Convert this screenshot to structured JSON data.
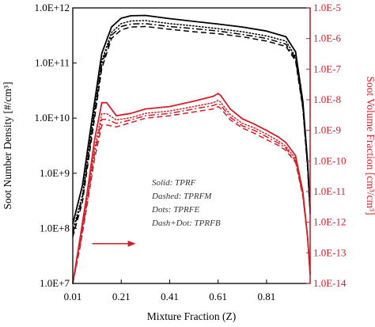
{
  "chart_data": {
    "type": "line",
    "xlabel": "Mixture Fraction (Z)",
    "ylabel_left": "Soot Number Density [#/cm³]",
    "ylabel_right": "Soot Volume Fraction [cm³/cm³]",
    "x_ticks": [
      0.01,
      0.21,
      0.41,
      0.61,
      0.81
    ],
    "x_tick_labels": [
      "0.01",
      "0.21",
      "0.41",
      "0.61",
      "0.81"
    ],
    "xlim": [
      0.01,
      0.99
    ],
    "left_axis": {
      "scale": "log",
      "ylim": [
        10000000.0,
        1000000000000.0
      ],
      "ticks": [
        10000000.0,
        100000000.0,
        1000000000.0,
        10000000000.0,
        100000000000.0,
        1000000000000.0
      ],
      "tick_labels": [
        "1.0E+7",
        "1.0E+8",
        "1.0E+9",
        "1.0E+10",
        "1.0E+11",
        "1.0E+12"
      ],
      "color": "#000000"
    },
    "right_axis": {
      "scale": "log",
      "ylim": [
        1e-14,
        1e-05
      ],
      "ticks": [
        1e-14,
        1e-13,
        1e-12,
        1e-11,
        1e-10,
        1e-09,
        1e-08,
        1e-07,
        1e-06,
        1e-05
      ],
      "tick_labels": [
        "1.0E-14",
        "1.0E-13",
        "1.0E-12",
        "1.0E-11",
        "1.0E-10",
        "1.0E-9",
        "1.0E-8",
        "1.0E-7",
        "1.0E-6",
        "1.0E-5"
      ],
      "color": "#d0202a"
    },
    "legend": {
      "placement": "center",
      "entries": [
        "Solid: TPRF",
        "Dashed: TPRFM",
        "Dots: TPRFE",
        "Dash+Dot: TPRFB"
      ]
    },
    "series": [
      {
        "name": "TPRF",
        "axis": "left",
        "style": "solid",
        "x": [
          0.01,
          0.05,
          0.09,
          0.13,
          0.17,
          0.21,
          0.25,
          0.31,
          0.41,
          0.51,
          0.61,
          0.71,
          0.81,
          0.89,
          0.93,
          0.96,
          0.98,
          0.99
        ],
        "y": [
          120000000.0,
          600000000.0,
          10000000000.0,
          150000000000.0,
          450000000000.0,
          650000000000.0,
          720000000000.0,
          730000000000.0,
          640000000000.0,
          570000000000.0,
          510000000000.0,
          450000000000.0,
          380000000000.0,
          300000000000.0,
          160000000000.0,
          20000000000.0,
          1500000000.0,
          220000000.0
        ]
      },
      {
        "name": "TPRFM",
        "axis": "left",
        "style": "dashed",
        "x": [
          0.01,
          0.05,
          0.09,
          0.13,
          0.17,
          0.21,
          0.25,
          0.31,
          0.41,
          0.51,
          0.61,
          0.71,
          0.81,
          0.89,
          0.93,
          0.96,
          0.98,
          0.99
        ],
        "y": [
          70000000.0,
          300000000.0,
          5000000000.0,
          80000000000.0,
          280000000000.0,
          400000000000.0,
          450000000000.0,
          460000000000.0,
          410000000000.0,
          370000000000.0,
          340000000000.0,
          300000000000.0,
          250000000000.0,
          200000000000.0,
          110000000000.0,
          15000000000.0,
          1200000000.0,
          180000000.0
        ]
      },
      {
        "name": "TPRFE",
        "axis": "left",
        "style": "dots",
        "x": [
          0.01,
          0.05,
          0.09,
          0.13,
          0.17,
          0.21,
          0.25,
          0.31,
          0.41,
          0.51,
          0.61,
          0.71,
          0.81,
          0.89,
          0.93,
          0.96,
          0.98,
          0.99
        ],
        "y": [
          90000000.0,
          400000000.0,
          7000000000.0,
          110000000000.0,
          360000000000.0,
          520000000000.0,
          580000000000.0,
          590000000000.0,
          520000000000.0,
          470000000000.0,
          420000000000.0,
          370000000000.0,
          310000000000.0,
          250000000000.0,
          130000000000.0,
          17000000000.0,
          1300000000.0,
          200000000.0
        ]
      },
      {
        "name": "TPRFB",
        "axis": "left",
        "style": "dashdot",
        "x": [
          0.01,
          0.05,
          0.09,
          0.13,
          0.17,
          0.21,
          0.25,
          0.31,
          0.41,
          0.51,
          0.61,
          0.71,
          0.81,
          0.89,
          0.93,
          0.96,
          0.98,
          0.99
        ],
        "y": [
          80000000.0,
          350000000.0,
          6000000000.0,
          95000000000.0,
          320000000000.0,
          460000000000.0,
          510000000000.0,
          520000000000.0,
          460000000000.0,
          420000000000.0,
          380000000000.0,
          330000000000.0,
          280000000000.0,
          220000000000.0,
          120000000000.0,
          16000000000.0,
          1250000000.0,
          190000000.0
        ]
      },
      {
        "name": "TPRF",
        "axis": "right",
        "style": "solid",
        "x": [
          0.01,
          0.04,
          0.07,
          0.1,
          0.13,
          0.15,
          0.19,
          0.25,
          0.31,
          0.41,
          0.51,
          0.59,
          0.61,
          0.62,
          0.66,
          0.71,
          0.76,
          0.81,
          0.86,
          0.89,
          0.93,
          0.96,
          0.98,
          0.99
        ],
        "y": [
          1e-14,
          3e-13,
          1e-11,
          5e-10,
          8e-09,
          8e-09,
          3e-09,
          3.6e-09,
          5e-09,
          6e-09,
          9e-09,
          1.3e-08,
          1.6e-08,
          1.4e-08,
          5e-09,
          2.4e-09,
          1.6e-09,
          1e-09,
          6e-10,
          4e-10,
          1.5e-10,
          1e-11,
          3e-13,
          2e-14
        ]
      },
      {
        "name": "TPRFM",
        "axis": "right",
        "style": "dashed",
        "x": [
          0.01,
          0.04,
          0.07,
          0.1,
          0.13,
          0.15,
          0.19,
          0.25,
          0.31,
          0.41,
          0.51,
          0.59,
          0.61,
          0.62,
          0.66,
          0.71,
          0.76,
          0.81,
          0.86,
          0.89,
          0.93,
          0.96,
          0.98,
          0.99
        ],
        "y": [
          1e-14,
          1.5e-13,
          4e-12,
          1.2e-10,
          1.5e-09,
          1.5e-09,
          1.3e-09,
          1.8e-09,
          2.5e-09,
          3e-09,
          4e-09,
          5e-09,
          6e-09,
          5.3e-09,
          2.2e-09,
          1.2e-09,
          8e-10,
          5e-10,
          3.2e-10,
          2.2e-10,
          9e-11,
          7e-12,
          3e-13,
          2e-14
        ]
      },
      {
        "name": "TPRFE",
        "axis": "right",
        "style": "dots",
        "x": [
          0.01,
          0.04,
          0.07,
          0.1,
          0.13,
          0.15,
          0.19,
          0.25,
          0.31,
          0.41,
          0.51,
          0.59,
          0.61,
          0.62,
          0.66,
          0.71,
          0.76,
          0.81,
          0.86,
          0.89,
          0.93,
          0.96,
          0.98,
          0.99
        ],
        "y": [
          1e-14,
          2.2e-13,
          7e-12,
          2.5e-10,
          3.5e-09,
          3.5e-09,
          2.2e-09,
          2.6e-09,
          3.6e-09,
          4.3e-09,
          6e-09,
          8e-09,
          9.5e-09,
          8.5e-09,
          3.3e-09,
          1.7e-09,
          1.2e-09,
          7.5e-10,
          4.5e-10,
          3e-10,
          1.2e-10,
          8e-12,
          3e-13,
          2e-14
        ]
      },
      {
        "name": "TPRFB",
        "axis": "right",
        "style": "dashdot",
        "x": [
          0.01,
          0.04,
          0.07,
          0.1,
          0.13,
          0.15,
          0.19,
          0.25,
          0.31,
          0.41,
          0.51,
          0.59,
          0.61,
          0.62,
          0.66,
          0.71,
          0.76,
          0.81,
          0.86,
          0.89,
          0.93,
          0.96,
          0.98,
          0.99
        ],
        "y": [
          1e-14,
          1.8e-13,
          5e-12,
          1.8e-10,
          2.3e-09,
          2.3e-09,
          1.7e-09,
          2.2e-09,
          3e-09,
          3.6e-09,
          5e-09,
          6.5e-09,
          7.5e-09,
          6.8e-09,
          2.7e-09,
          1.4e-09,
          1e-09,
          6.2e-10,
          3.8e-10,
          2.6e-10,
          1e-10,
          7.5e-12,
          3e-13,
          2e-14
        ]
      }
    ],
    "annotation": {
      "type": "arrow",
      "color": "#d0202a",
      "x_from": 0.09,
      "x_to": 0.27,
      "y_right": 2e-13,
      "points_to": "right axis"
    }
  }
}
